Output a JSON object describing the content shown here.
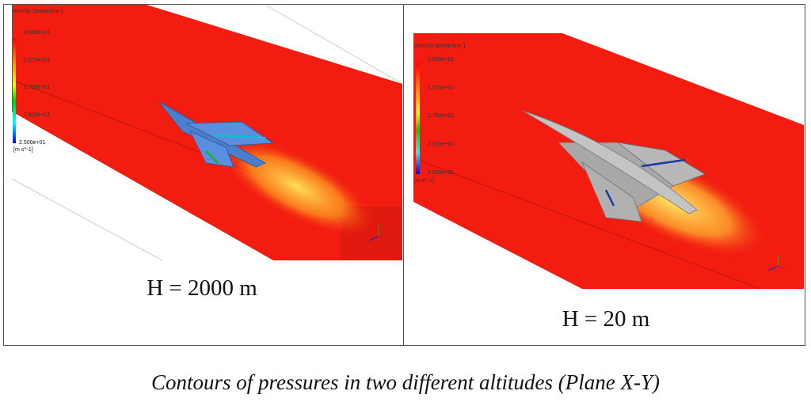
{
  "panels": [
    {
      "caption": "H = 2000 m",
      "legend": {
        "title": "Velocity Streamline 1",
        "ticks": [
          "3.000e+01",
          "2.875e+01",
          "2.750e+01",
          "2.625e+01",
          "2.500e+01"
        ],
        "unit": "[m s^-1]"
      },
      "aircraft_color": "#4a7fd0"
    },
    {
      "caption": "H = 20 m",
      "legend": {
        "title": "Velocity Streamline 1",
        "ticks": [
          "3.000e+01",
          "2.875e+01",
          "2.750e+01",
          "2.625e+01",
          "2.500e+01"
        ],
        "unit": "[m s^-1]"
      },
      "aircraft_color": "#a8a8a8"
    }
  ],
  "figure_caption": "Contours of pressures in two different altitudes (Plane X-Y)",
  "colors": {
    "field": "#f21d10",
    "wake": "#ffd23a",
    "colormap": [
      "#ff0000",
      "#ffff00",
      "#00cc00",
      "#00ffff",
      "#0000ff"
    ]
  }
}
